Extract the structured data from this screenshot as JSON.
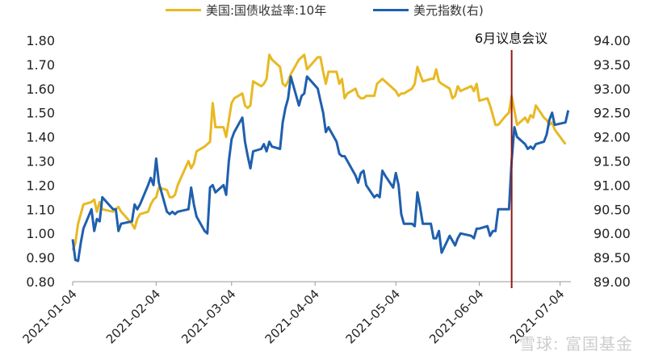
{
  "chart_data": {
    "type": "line",
    "title": "",
    "xlabel": "",
    "ylabel": "",
    "x_ticks": [
      "2021-01-04",
      "2021-02-04",
      "2021-03-04",
      "2021-04-04",
      "2021-05-04",
      "2021-06-04",
      "2021-07-04"
    ],
    "y_left": {
      "ticks": [
        "0.80",
        "0.90",
        "1.00",
        "1.10",
        "1.20",
        "1.30",
        "1.40",
        "1.50",
        "1.60",
        "1.70",
        "1.80"
      ],
      "range": [
        0.8,
        1.8
      ]
    },
    "y_right": {
      "ticks": [
        "89.00",
        "89.50",
        "90.00",
        "90.50",
        "91.00",
        "91.50",
        "92.00",
        "92.50",
        "93.00",
        "93.50",
        "94.00"
      ],
      "range": [
        89.0,
        94.0
      ]
    },
    "legend_position": "top",
    "annotation": {
      "label": "6月议息会议",
      "date": "2021-06-16",
      "color": "#8b1a1a"
    },
    "series": [
      {
        "name": "美国:国债收益率:10年",
        "axis": "left",
        "color": "#e8b923",
        "points": [
          [
            "2021-01-04",
            0.93
          ],
          [
            "2021-01-05",
            0.96
          ],
          [
            "2021-01-06",
            1.04
          ],
          [
            "2021-01-07",
            1.08
          ],
          [
            "2021-01-08",
            1.12
          ],
          [
            "2021-01-11",
            1.13
          ],
          [
            "2021-01-12",
            1.14
          ],
          [
            "2021-01-13",
            1.09
          ],
          [
            "2021-01-14",
            1.13
          ],
          [
            "2021-01-15",
            1.1
          ],
          [
            "2021-01-19",
            1.09
          ],
          [
            "2021-01-20",
            1.1
          ],
          [
            "2021-01-21",
            1.11
          ],
          [
            "2021-01-22",
            1.09
          ],
          [
            "2021-01-26",
            1.04
          ],
          [
            "2021-01-27",
            1.02
          ],
          [
            "2021-01-28",
            1.06
          ],
          [
            "2021-01-29",
            1.08
          ],
          [
            "2021-02-01",
            1.09
          ],
          [
            "2021-02-02",
            1.12
          ],
          [
            "2021-02-03",
            1.14
          ],
          [
            "2021-02-04",
            1.15
          ],
          [
            "2021-02-05",
            1.19
          ],
          [
            "2021-02-08",
            1.18
          ],
          [
            "2021-02-09",
            1.15
          ],
          [
            "2021-02-10",
            1.15
          ],
          [
            "2021-02-11",
            1.16
          ],
          [
            "2021-02-12",
            1.2
          ],
          [
            "2021-02-16",
            1.3
          ],
          [
            "2021-02-17",
            1.27
          ],
          [
            "2021-02-18",
            1.29
          ],
          [
            "2021-02-19",
            1.34
          ],
          [
            "2021-02-22",
            1.36
          ],
          [
            "2021-02-23",
            1.37
          ],
          [
            "2021-02-24",
            1.38
          ],
          [
            "2021-02-25",
            1.54
          ],
          [
            "2021-02-26",
            1.44
          ],
          [
            "2021-03-01",
            1.44
          ],
          [
            "2021-03-02",
            1.4
          ],
          [
            "2021-03-03",
            1.47
          ],
          [
            "2021-03-04",
            1.54
          ],
          [
            "2021-03-05",
            1.56
          ],
          [
            "2021-03-08",
            1.58
          ],
          [
            "2021-03-09",
            1.53
          ],
          [
            "2021-03-10",
            1.52
          ],
          [
            "2021-03-11",
            1.53
          ],
          [
            "2021-03-12",
            1.63
          ],
          [
            "2021-03-15",
            1.61
          ],
          [
            "2021-03-16",
            1.62
          ],
          [
            "2021-03-17",
            1.64
          ],
          [
            "2021-03-18",
            1.74
          ],
          [
            "2021-03-19",
            1.72
          ],
          [
            "2021-03-22",
            1.69
          ],
          [
            "2021-03-23",
            1.62
          ],
          [
            "2021-03-24",
            1.61
          ],
          [
            "2021-03-25",
            1.63
          ],
          [
            "2021-03-26",
            1.66
          ],
          [
            "2021-03-29",
            1.72
          ],
          [
            "2021-03-30",
            1.73
          ],
          [
            "2021-03-31",
            1.74
          ],
          [
            "2021-04-01",
            1.68
          ],
          [
            "2021-04-05",
            1.73
          ],
          [
            "2021-04-06",
            1.73
          ],
          [
            "2021-04-07",
            1.67
          ],
          [
            "2021-04-08",
            1.62
          ],
          [
            "2021-04-09",
            1.67
          ],
          [
            "2021-04-12",
            1.67
          ],
          [
            "2021-04-13",
            1.62
          ],
          [
            "2021-04-14",
            1.64
          ],
          [
            "2021-04-15",
            1.56
          ],
          [
            "2021-04-16",
            1.58
          ],
          [
            "2021-04-19",
            1.6
          ],
          [
            "2021-04-20",
            1.57
          ],
          [
            "2021-04-21",
            1.56
          ],
          [
            "2021-04-22",
            1.56
          ],
          [
            "2021-04-23",
            1.57
          ],
          [
            "2021-04-26",
            1.57
          ],
          [
            "2021-04-27",
            1.62
          ],
          [
            "2021-04-28",
            1.63
          ],
          [
            "2021-04-29",
            1.64
          ],
          [
            "2021-04-30",
            1.63
          ],
          [
            "2021-05-03",
            1.6
          ],
          [
            "2021-05-04",
            1.59
          ],
          [
            "2021-05-05",
            1.57
          ],
          [
            "2021-05-06",
            1.58
          ],
          [
            "2021-05-07",
            1.58
          ],
          [
            "2021-05-10",
            1.6
          ],
          [
            "2021-05-11",
            1.62
          ],
          [
            "2021-05-12",
            1.69
          ],
          [
            "2021-05-13",
            1.66
          ],
          [
            "2021-05-14",
            1.63
          ],
          [
            "2021-05-17",
            1.64
          ],
          [
            "2021-05-18",
            1.64
          ],
          [
            "2021-05-19",
            1.68
          ],
          [
            "2021-05-20",
            1.63
          ],
          [
            "2021-05-21",
            1.62
          ],
          [
            "2021-05-24",
            1.6
          ],
          [
            "2021-05-25",
            1.56
          ],
          [
            "2021-05-26",
            1.57
          ],
          [
            "2021-05-27",
            1.61
          ],
          [
            "2021-05-28",
            1.59
          ],
          [
            "2021-06-01",
            1.61
          ],
          [
            "2021-06-02",
            1.59
          ],
          [
            "2021-06-03",
            1.62
          ],
          [
            "2021-06-04",
            1.55
          ],
          [
            "2021-06-07",
            1.56
          ],
          [
            "2021-06-08",
            1.53
          ],
          [
            "2021-06-09",
            1.49
          ],
          [
            "2021-06-10",
            1.45
          ],
          [
            "2021-06-11",
            1.45
          ],
          [
            "2021-06-14",
            1.49
          ],
          [
            "2021-06-15",
            1.5
          ],
          [
            "2021-06-16",
            1.57
          ],
          [
            "2021-06-17",
            1.51
          ],
          [
            "2021-06-18",
            1.45
          ],
          [
            "2021-06-21",
            1.48
          ],
          [
            "2021-06-22",
            1.46
          ],
          [
            "2021-06-23",
            1.49
          ],
          [
            "2021-06-24",
            1.48
          ],
          [
            "2021-06-25",
            1.53
          ],
          [
            "2021-06-28",
            1.48
          ],
          [
            "2021-06-29",
            1.47
          ],
          [
            "2021-06-30",
            1.45
          ],
          [
            "2021-07-01",
            1.46
          ],
          [
            "2021-07-02",
            1.43
          ],
          [
            "2021-07-06",
            1.37
          ]
        ]
      },
      {
        "name": "美元指数(右)",
        "axis": "right",
        "color": "#1f5fae",
        "points": [
          [
            "2021-01-04",
            89.88
          ],
          [
            "2021-01-05",
            89.45
          ],
          [
            "2021-01-06",
            89.43
          ],
          [
            "2021-01-07",
            89.8
          ],
          [
            "2021-01-08",
            90.1
          ],
          [
            "2021-01-11",
            90.5
          ],
          [
            "2021-01-12",
            90.05
          ],
          [
            "2021-01-13",
            90.3
          ],
          [
            "2021-01-14",
            90.25
          ],
          [
            "2021-01-15",
            90.75
          ],
          [
            "2021-01-19",
            90.5
          ],
          [
            "2021-01-20",
            90.5
          ],
          [
            "2021-01-21",
            90.05
          ],
          [
            "2021-01-22",
            90.2
          ],
          [
            "2021-01-26",
            90.25
          ],
          [
            "2021-01-27",
            90.6
          ],
          [
            "2021-01-28",
            90.5
          ],
          [
            "2021-01-29",
            90.6
          ],
          [
            "2021-02-01",
            91.0
          ],
          [
            "2021-02-02",
            91.15
          ],
          [
            "2021-02-03",
            91.0
          ],
          [
            "2021-02-04",
            91.55
          ],
          [
            "2021-02-05",
            91.05
          ],
          [
            "2021-02-08",
            90.45
          ],
          [
            "2021-02-09",
            90.4
          ],
          [
            "2021-02-10",
            90.45
          ],
          [
            "2021-02-11",
            90.4
          ],
          [
            "2021-02-12",
            90.45
          ],
          [
            "2021-02-16",
            90.5
          ],
          [
            "2021-02-17",
            90.95
          ],
          [
            "2021-02-18",
            90.6
          ],
          [
            "2021-02-19",
            90.35
          ],
          [
            "2021-02-22",
            90.05
          ],
          [
            "2021-02-23",
            90.0
          ],
          [
            "2021-02-24",
            90.95
          ],
          [
            "2021-02-25",
            91.0
          ],
          [
            "2021-02-26",
            90.85
          ],
          [
            "2021-03-01",
            91.0
          ],
          [
            "2021-03-02",
            90.8
          ],
          [
            "2021-03-03",
            91.5
          ],
          [
            "2021-03-04",
            91.95
          ],
          [
            "2021-03-05",
            92.1
          ],
          [
            "2021-03-08",
            92.4
          ],
          [
            "2021-03-09",
            91.9
          ],
          [
            "2021-03-10",
            91.6
          ],
          [
            "2021-03-11",
            91.35
          ],
          [
            "2021-03-12",
            91.7
          ],
          [
            "2021-03-15",
            91.75
          ],
          [
            "2021-03-16",
            91.85
          ],
          [
            "2021-03-17",
            91.7
          ],
          [
            "2021-03-18",
            91.9
          ],
          [
            "2021-03-19",
            91.8
          ],
          [
            "2021-03-22",
            91.75
          ],
          [
            "2021-03-23",
            92.3
          ],
          [
            "2021-03-24",
            92.6
          ],
          [
            "2021-03-25",
            92.8
          ],
          [
            "2021-03-26",
            93.25
          ],
          [
            "2021-03-29",
            92.65
          ],
          [
            "2021-03-30",
            92.85
          ],
          [
            "2021-03-31",
            92.9
          ],
          [
            "2021-04-01",
            93.25
          ],
          [
            "2021-04-05",
            93.0
          ],
          [
            "2021-04-06",
            92.75
          ],
          [
            "2021-04-07",
            92.5
          ],
          [
            "2021-04-08",
            92.1
          ],
          [
            "2021-04-09",
            92.2
          ],
          [
            "2021-04-12",
            91.9
          ],
          [
            "2021-04-13",
            91.65
          ],
          [
            "2021-04-14",
            91.6
          ],
          [
            "2021-04-15",
            91.6
          ],
          [
            "2021-04-16",
            91.5
          ],
          [
            "2021-04-19",
            91.2
          ],
          [
            "2021-04-20",
            91.05
          ],
          [
            "2021-04-21",
            91.25
          ],
          [
            "2021-04-22",
            91.3
          ],
          [
            "2021-04-23",
            91.0
          ],
          [
            "2021-04-26",
            90.75
          ],
          [
            "2021-04-27",
            90.8
          ],
          [
            "2021-04-28",
            90.75
          ],
          [
            "2021-04-29",
            91.3
          ],
          [
            "2021-04-30",
            91.2
          ],
          [
            "2021-05-03",
            90.95
          ],
          [
            "2021-05-04",
            91.25
          ],
          [
            "2021-05-05",
            91.0
          ],
          [
            "2021-05-06",
            90.4
          ],
          [
            "2021-05-07",
            90.2
          ],
          [
            "2021-05-10",
            90.2
          ],
          [
            "2021-05-11",
            90.15
          ],
          [
            "2021-05-12",
            90.85
          ],
          [
            "2021-05-13",
            90.55
          ],
          [
            "2021-05-14",
            90.2
          ],
          [
            "2021-05-17",
            90.2
          ],
          [
            "2021-05-18",
            89.9
          ],
          [
            "2021-05-19",
            89.9
          ],
          [
            "2021-05-20",
            90.05
          ],
          [
            "2021-05-21",
            89.6
          ],
          [
            "2021-05-24",
            89.95
          ],
          [
            "2021-05-25",
            89.85
          ],
          [
            "2021-05-26",
            89.75
          ],
          [
            "2021-05-27",
            89.9
          ],
          [
            "2021-05-28",
            90.0
          ],
          [
            "2021-06-01",
            89.95
          ],
          [
            "2021-06-02",
            89.9
          ],
          [
            "2021-06-03",
            90.1
          ],
          [
            "2021-06-04",
            90.1
          ],
          [
            "2021-06-07",
            90.15
          ],
          [
            "2021-06-08",
            89.95
          ],
          [
            "2021-06-09",
            90.05
          ],
          [
            "2021-06-10",
            90.05
          ],
          [
            "2021-06-11",
            90.5
          ],
          [
            "2021-06-14",
            90.5
          ],
          [
            "2021-06-15",
            90.5
          ],
          [
            "2021-06-16",
            91.5
          ],
          [
            "2021-06-17",
            92.2
          ],
          [
            "2021-06-18",
            92.0
          ],
          [
            "2021-06-21",
            91.85
          ],
          [
            "2021-06-22",
            91.75
          ],
          [
            "2021-06-23",
            91.8
          ],
          [
            "2021-06-24",
            91.75
          ],
          [
            "2021-06-25",
            91.85
          ],
          [
            "2021-06-28",
            91.9
          ],
          [
            "2021-06-29",
            92.05
          ],
          [
            "2021-06-30",
            92.35
          ],
          [
            "2021-07-01",
            92.5
          ],
          [
            "2021-07-02",
            92.25
          ],
          [
            "2021-07-06",
            92.3
          ],
          [
            "2021-07-07",
            92.55
          ]
        ]
      }
    ]
  },
  "watermark": "雪球: 富国基金"
}
